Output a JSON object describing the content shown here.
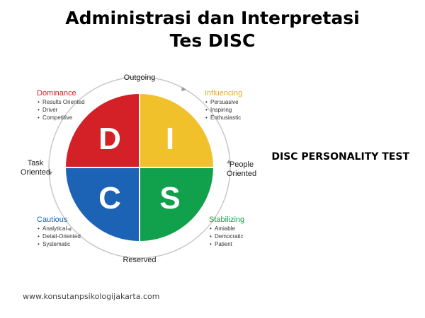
{
  "title": {
    "line1": "Administrasi dan Interpretasi",
    "line2": "Tes DISC"
  },
  "side_label": "DISC PERSONALITY TEST",
  "footer_url": "www.konsutanpsikologijakarta.com",
  "axes": {
    "top": "Outgoing",
    "bottom": "Reserved",
    "left_line1": "Task",
    "left_line2": "Oriented",
    "right_line1": "People",
    "right_line2": "Oriented"
  },
  "quadrants": {
    "dominance": {
      "letter": "D",
      "color": "#d42027",
      "label_color": "#d42027",
      "title": "Dominance",
      "traits": [
        "Results Oriented",
        "Driver",
        "Competitive"
      ]
    },
    "influencing": {
      "letter": "I",
      "color": "#f1c12c",
      "label_color": "#e9a92a",
      "title": "Influencing",
      "traits": [
        "Persuasive",
        "Inspiring",
        "Enthusiastic"
      ]
    },
    "cautious": {
      "letter": "C",
      "color": "#1d63b5",
      "label_color": "#1d63b5",
      "title": "Cautious",
      "traits": [
        "Analytical",
        "Detail-Oriented",
        "Systematic"
      ]
    },
    "stabilizing": {
      "letter": "S",
      "color": "#11a04b",
      "label_color": "#11a04b",
      "title": "Stabilizing",
      "traits": [
        "Amiable",
        "Democratic",
        "Patient"
      ]
    }
  }
}
